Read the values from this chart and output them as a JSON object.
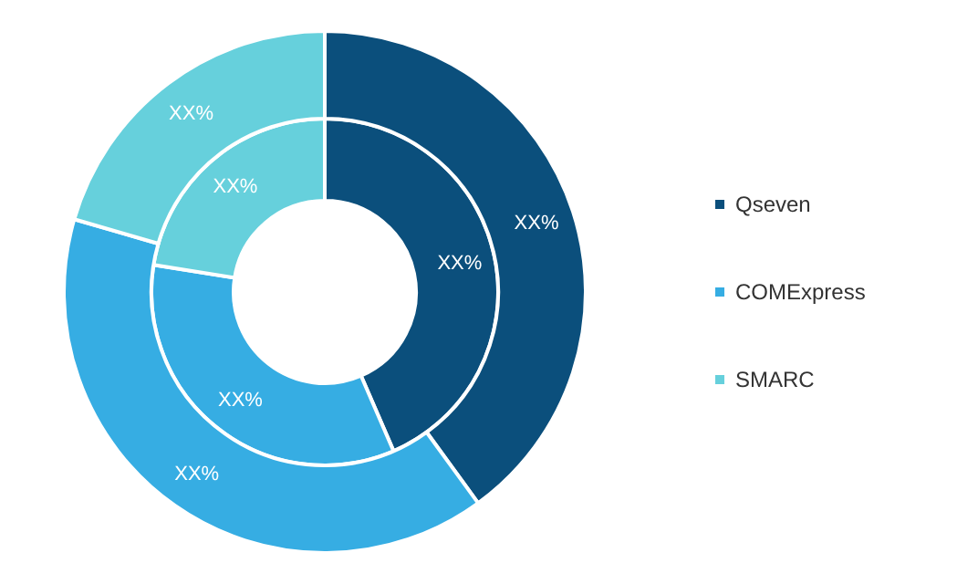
{
  "chart_data": {
    "type": "donut",
    "categories": [
      "Qseven",
      "COMExpress",
      "SMARC"
    ],
    "colors": [
      "#0b4f7c",
      "#36ade3",
      "#66d0dc"
    ],
    "legend": "right",
    "series": [
      {
        "values": [
          43.5,
          34,
          22.5
        ],
        "value_labels": [
          "XX%",
          "XX%",
          "XX%"
        ]
      },
      {
        "values": [
          40,
          39.5,
          20.5
        ],
        "value_labels": [
          "XX%",
          "XX%",
          "XX%"
        ]
      }
    ]
  }
}
